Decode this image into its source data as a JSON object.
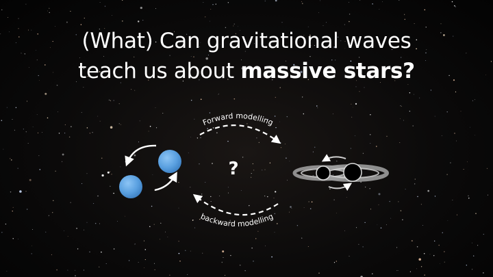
{
  "slide": {
    "title_line1": "(What) Can gravitational waves",
    "title_line2_prefix": "teach us about ",
    "title_line2_bold": "massive stars?",
    "forward_label": "Forward modelling",
    "backward_label": "backward modelling",
    "center_symbol": "?"
  },
  "icons": {
    "left": "binary-stars-icon",
    "right": "binary-black-holes-icon"
  },
  "colors": {
    "background": "#050505",
    "text": "#ffffff",
    "star_fill": "#5aa0e0",
    "black_hole": "#000000",
    "accretion_ring": "#a8a8a8"
  }
}
